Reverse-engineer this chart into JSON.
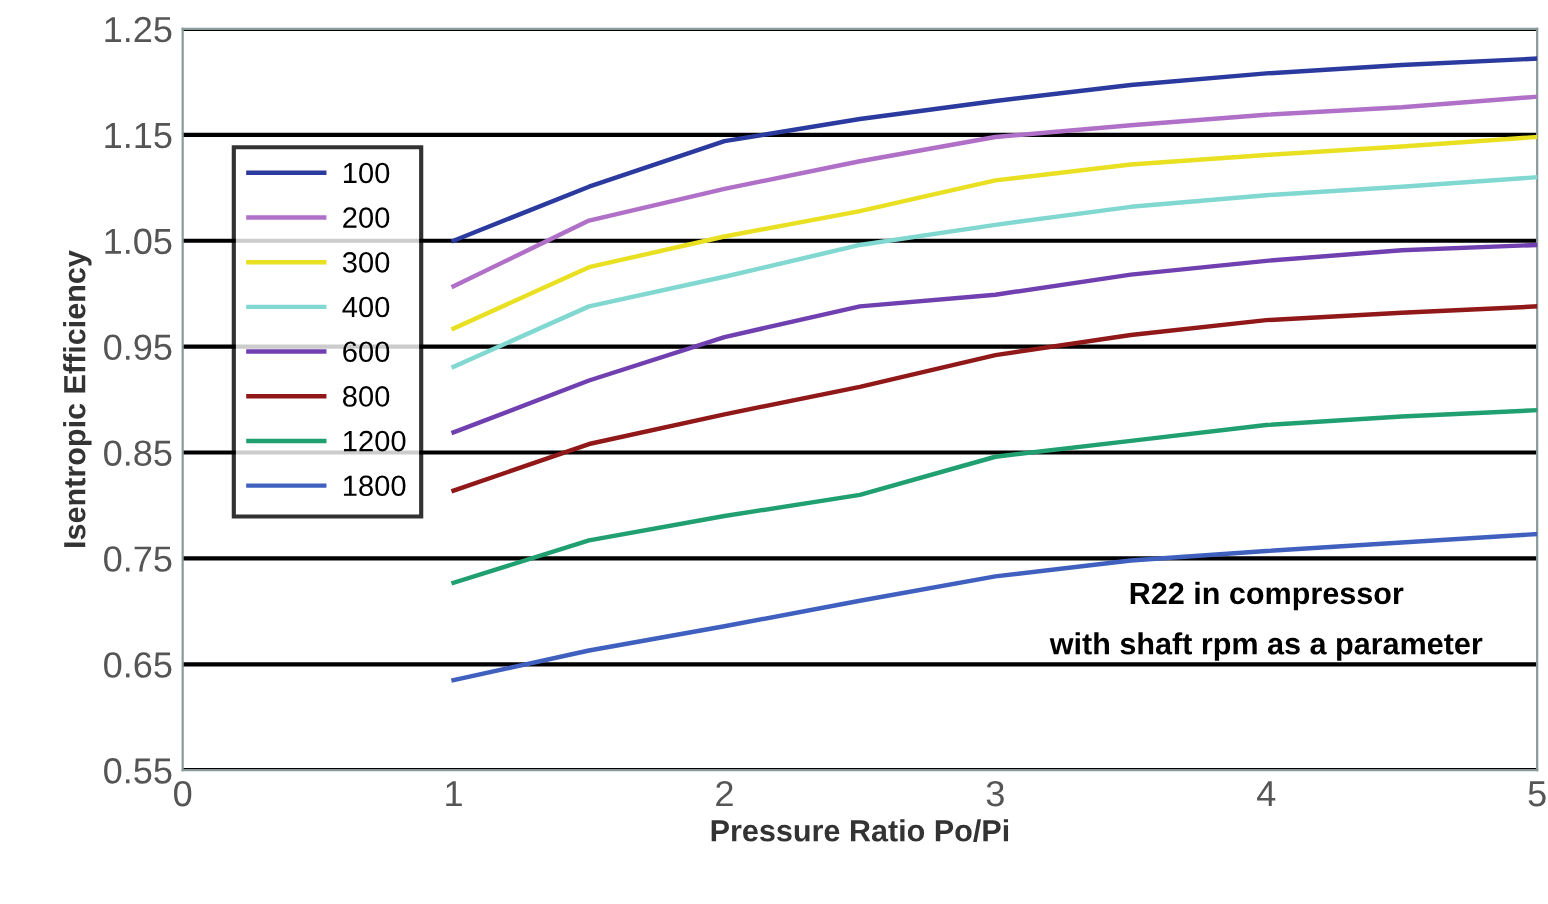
{
  "chart_data": {
    "type": "line",
    "xlabel": "Pressure Ratio Po/Pi",
    "ylabel": "Isentropic Efficiency",
    "x": [
      1,
      1.5,
      2,
      2.5,
      3,
      3.5,
      4,
      4.5,
      5
    ],
    "xlim": [
      0,
      5
    ],
    "xticks": [
      0,
      1,
      2,
      3,
      4,
      5
    ],
    "ylim": [
      0.55,
      1.25
    ],
    "yticks": [
      0.55,
      0.65,
      0.75,
      0.85,
      0.95,
      1.05,
      1.15,
      1.25
    ],
    "grid": "y",
    "legend": "top left",
    "marker": "none",
    "line_style": "solid",
    "annotations": [
      "R22 in compressor",
      "with shaft rpm as a parameter"
    ],
    "series": [
      {
        "name": "100",
        "color": "#2b3a9e",
        "values": [
          1.05,
          1.101,
          1.144,
          1.165,
          1.182,
          1.197,
          1.208,
          1.216,
          1.222
        ]
      },
      {
        "name": "200",
        "color": "#b070c8",
        "values": [
          1.007,
          1.069,
          1.099,
          1.125,
          1.148,
          1.159,
          1.169,
          1.176,
          1.186
        ]
      },
      {
        "name": "300",
        "color": "#e8e020",
        "values": [
          0.967,
          1.025,
          1.054,
          1.078,
          1.107,
          1.122,
          1.131,
          1.139,
          1.148
        ]
      },
      {
        "name": "400",
        "color": "#80d8d0",
        "values": [
          0.931,
          0.988,
          1.016,
          1.046,
          1.065,
          1.082,
          1.093,
          1.101,
          1.11
        ]
      },
      {
        "name": "600",
        "color": "#7040b0",
        "values": [
          0.869,
          0.918,
          0.959,
          0.988,
          0.999,
          1.018,
          1.031,
          1.041,
          1.046
        ]
      },
      {
        "name": "800",
        "color": "#901818",
        "values": [
          0.814,
          0.858,
          0.886,
          0.912,
          0.942,
          0.961,
          0.975,
          0.982,
          0.988
        ]
      },
      {
        "name": "1200",
        "color": "#20a070",
        "values": [
          0.727,
          0.767,
          0.79,
          0.81,
          0.846,
          0.861,
          0.876,
          0.884,
          0.89
        ]
      },
      {
        "name": "1800",
        "color": "#4060c0",
        "values": [
          0.635,
          0.663,
          0.686,
          0.71,
          0.733,
          0.748,
          0.757,
          0.765,
          0.773
        ]
      }
    ]
  }
}
